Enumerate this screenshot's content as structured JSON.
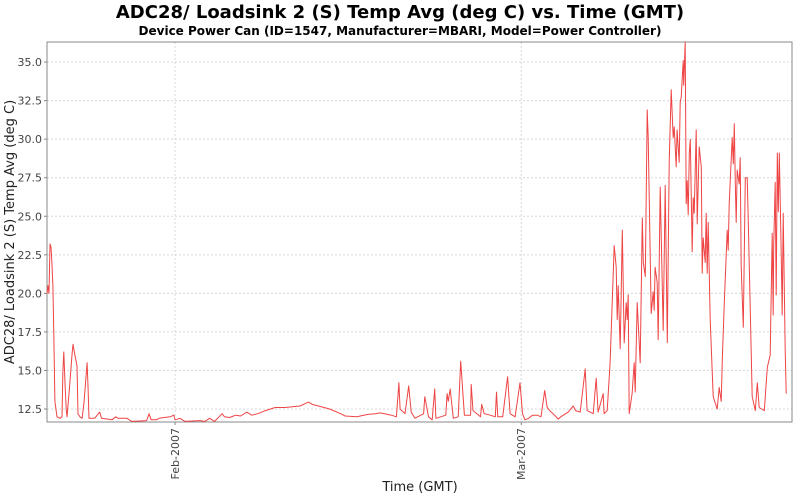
{
  "chart_data": {
    "type": "line",
    "title": "ADC28/ Loadsink 2 (S) Temp Avg (deg C) vs. Time (GMT)",
    "subtitle": "Device Power Can (ID=1547, Manufacturer=MBARI, Model=Power Controller)",
    "xlabel": "Time (GMT)",
    "ylabel": "ADC28/ Loadsink 2 (S) Temp Avg (deg C)",
    "x_units": "day of year 2007 (Jan 1 = 0)",
    "xlim": [
      20.64,
      80.9
    ],
    "ylim": [
      11.66,
      36.3
    ],
    "grid": true,
    "y_ticks": [
      12.5,
      15.0,
      17.5,
      20.0,
      22.5,
      25.0,
      27.5,
      30.0,
      32.5,
      35.0
    ],
    "y_tick_labels": [
      "12.5",
      "15.0",
      "17.5",
      "20.0",
      "22.5",
      "25.0",
      "27.5",
      "30.0",
      "32.5",
      "35.0"
    ],
    "x_ticks": [
      31,
      59
    ],
    "x_tick_labels": [
      "Feb-2007",
      "Mar-2007"
    ],
    "line_color": "#ee4444",
    "series": [
      {
        "name": "ADC28/ Loadsink 2 (S) Temp Avg",
        "points": [
          [
            20.64,
            20.0
          ],
          [
            20.72,
            20.5
          ],
          [
            20.8,
            20.0
          ],
          [
            20.88,
            23.2
          ],
          [
            20.96,
            23.0
          ],
          [
            21.04,
            22.0
          ],
          [
            21.12,
            20.5
          ],
          [
            21.2,
            17.0
          ],
          [
            21.28,
            13.0
          ],
          [
            21.45,
            12.0
          ],
          [
            21.69,
            11.9
          ],
          [
            21.85,
            12.0
          ],
          [
            21.93,
            15.0
          ],
          [
            22.0,
            16.2
          ],
          [
            22.1,
            14.0
          ],
          [
            22.2,
            12.4
          ],
          [
            22.26,
            12.0
          ],
          [
            22.42,
            13.5
          ],
          [
            22.66,
            16.0
          ],
          [
            22.74,
            16.7
          ],
          [
            22.9,
            16.0
          ],
          [
            23.07,
            15.3
          ],
          [
            23.15,
            12.2
          ],
          [
            23.3,
            12.0
          ],
          [
            23.48,
            11.9
          ],
          [
            23.64,
            13.0
          ],
          [
            23.88,
            15.5
          ],
          [
            23.96,
            14.0
          ],
          [
            24.04,
            11.9
          ],
          [
            24.5,
            11.9
          ],
          [
            24.9,
            12.3
          ],
          [
            25.06,
            11.9
          ],
          [
            25.9,
            11.8
          ],
          [
            26.2,
            12.0
          ],
          [
            26.4,
            11.9
          ],
          [
            27.1,
            11.9
          ],
          [
            27.3,
            11.8
          ],
          [
            27.5,
            11.7
          ],
          [
            28.7,
            11.75
          ],
          [
            28.9,
            12.2
          ],
          [
            29.06,
            11.8
          ],
          [
            29.5,
            11.8
          ],
          [
            29.7,
            11.9
          ],
          [
            30.6,
            12.0
          ],
          [
            30.9,
            12.1
          ],
          [
            31.0,
            11.8
          ],
          [
            31.4,
            11.9
          ],
          [
            31.8,
            11.7
          ],
          [
            33.0,
            11.75
          ],
          [
            33.4,
            11.7
          ],
          [
            33.8,
            11.9
          ],
          [
            34.2,
            11.7
          ],
          [
            34.8,
            12.2
          ],
          [
            35.0,
            12.0
          ],
          [
            35.4,
            11.95
          ],
          [
            35.9,
            12.1
          ],
          [
            36.3,
            12.05
          ],
          [
            36.8,
            12.3
          ],
          [
            37.2,
            12.1
          ],
          [
            37.7,
            12.2
          ],
          [
            38.3,
            12.4
          ],
          [
            39.1,
            12.6
          ],
          [
            39.9,
            12.6
          ],
          [
            41.1,
            12.7
          ],
          [
            41.8,
            12.95
          ],
          [
            42.1,
            12.8
          ],
          [
            42.6,
            12.7
          ],
          [
            43.5,
            12.5
          ],
          [
            44.4,
            12.2
          ],
          [
            44.75,
            12.05
          ],
          [
            45.7,
            12.0
          ],
          [
            46.6,
            12.15
          ],
          [
            47.2,
            12.2
          ],
          [
            47.6,
            12.25
          ],
          [
            48.5,
            12.1
          ],
          [
            48.9,
            12.0
          ],
          [
            49.1,
            14.2
          ],
          [
            49.2,
            12.5
          ],
          [
            49.6,
            12.2
          ],
          [
            49.9,
            14.0
          ],
          [
            50.1,
            12.3
          ],
          [
            50.4,
            11.9
          ],
          [
            51.1,
            12.2
          ],
          [
            51.2,
            13.3
          ],
          [
            51.5,
            12.0
          ],
          [
            51.8,
            11.8
          ],
          [
            52.0,
            13.8
          ],
          [
            52.1,
            11.9
          ],
          [
            52.9,
            12.1
          ],
          [
            53.0,
            13.5
          ],
          [
            53.1,
            13.0
          ],
          [
            53.25,
            13.8
          ],
          [
            53.5,
            11.9
          ],
          [
            53.9,
            12.0
          ],
          [
            54.1,
            15.6
          ],
          [
            54.4,
            12.1
          ],
          [
            54.9,
            12.1
          ],
          [
            54.95,
            14.1
          ],
          [
            55.1,
            12.4
          ],
          [
            55.7,
            12.0
          ],
          [
            55.8,
            12.8
          ],
          [
            56.0,
            12.2
          ],
          [
            56.5,
            12.1
          ],
          [
            56.9,
            12.0
          ],
          [
            57.0,
            13.6
          ],
          [
            57.1,
            12.0
          ],
          [
            57.5,
            12.0
          ],
          [
            57.9,
            14.6
          ],
          [
            58.1,
            12.2
          ],
          [
            58.5,
            12.0
          ],
          [
            58.9,
            14.2
          ],
          [
            59.1,
            12.2
          ],
          [
            59.3,
            11.8
          ],
          [
            59.6,
            11.9
          ],
          [
            59.9,
            12.1
          ],
          [
            60.3,
            12.1
          ],
          [
            60.6,
            12.0
          ],
          [
            60.9,
            13.7
          ],
          [
            61.1,
            12.6
          ],
          [
            61.3,
            12.4
          ],
          [
            61.7,
            12.1
          ],
          [
            62.0,
            11.85
          ],
          [
            62.2,
            12.0
          ],
          [
            62.8,
            12.3
          ],
          [
            63.2,
            12.7
          ],
          [
            63.4,
            12.4
          ],
          [
            63.77,
            12.3
          ],
          [
            64.17,
            15.1
          ],
          [
            64.33,
            12.4
          ],
          [
            64.82,
            12.2
          ],
          [
            65.06,
            14.5
          ],
          [
            65.22,
            12.3
          ],
          [
            65.63,
            13.5
          ],
          [
            65.7,
            12.2
          ],
          [
            65.95,
            12.4
          ],
          [
            66.19,
            15.5
          ],
          [
            66.52,
            23.1
          ],
          [
            66.68,
            21.7
          ],
          [
            66.76,
            18.3
          ],
          [
            66.84,
            20.5
          ],
          [
            67.0,
            16.4
          ],
          [
            67.17,
            24.1
          ],
          [
            67.33,
            16.8
          ],
          [
            67.49,
            19.4
          ],
          [
            67.57,
            18.3
          ],
          [
            67.65,
            19.9
          ],
          [
            67.73,
            12.2
          ],
          [
            67.97,
            13.5
          ],
          [
            68.14,
            15.5
          ],
          [
            68.22,
            13.6
          ],
          [
            68.38,
            19.4
          ],
          [
            68.62,
            15.5
          ],
          [
            68.79,
            24.9
          ],
          [
            68.87,
            22.0
          ],
          [
            69.03,
            21.1
          ],
          [
            69.19,
            31.9
          ],
          [
            69.27,
            30.1
          ],
          [
            69.51,
            18.7
          ],
          [
            69.67,
            20.1
          ],
          [
            69.75,
            18.9
          ],
          [
            69.83,
            21.7
          ],
          [
            70.0,
            20.7
          ],
          [
            70.08,
            17.0
          ],
          [
            70.24,
            26.9
          ],
          [
            70.48,
            17.6
          ],
          [
            70.64,
            27.0
          ],
          [
            70.81,
            16.8
          ],
          [
            70.97,
            28.5
          ],
          [
            71.13,
            33.2
          ],
          [
            71.29,
            30.1
          ],
          [
            71.37,
            30.8
          ],
          [
            71.53,
            28.2
          ],
          [
            71.61,
            30.6
          ],
          [
            71.78,
            28.5
          ],
          [
            71.86,
            32.4
          ],
          [
            71.94,
            32.7
          ],
          [
            72.1,
            35.1
          ],
          [
            72.14,
            33.5
          ],
          [
            72.26,
            36.3
          ],
          [
            72.34,
            25.8
          ],
          [
            72.42,
            27.3
          ],
          [
            72.5,
            25.1
          ],
          [
            72.59,
            29.1
          ],
          [
            72.67,
            30.0
          ],
          [
            72.83,
            22.7
          ],
          [
            72.91,
            26.2
          ],
          [
            72.99,
            25.2
          ],
          [
            73.15,
            30.6
          ],
          [
            73.23,
            24.5
          ],
          [
            73.39,
            29.5
          ],
          [
            73.56,
            28.2
          ],
          [
            73.64,
            21.3
          ],
          [
            73.72,
            23.6
          ],
          [
            73.88,
            22.0
          ],
          [
            73.96,
            25.2
          ],
          [
            74.04,
            21.3
          ],
          [
            74.12,
            24.6
          ],
          [
            74.28,
            18.3
          ],
          [
            74.53,
            13.3
          ],
          [
            74.85,
            12.5
          ],
          [
            75.01,
            13.9
          ],
          [
            75.17,
            13.0
          ],
          [
            75.26,
            15.7
          ],
          [
            75.42,
            19.4
          ],
          [
            75.66,
            24.1
          ],
          [
            75.74,
            22.8
          ],
          [
            75.82,
            25.8
          ],
          [
            76.06,
            30.1
          ],
          [
            76.15,
            28.4
          ],
          [
            76.23,
            31.0
          ],
          [
            76.31,
            27.1
          ],
          [
            76.39,
            24.6
          ],
          [
            76.47,
            28.0
          ],
          [
            76.63,
            27.1
          ],
          [
            76.71,
            28.8
          ],
          [
            76.79,
            21.7
          ],
          [
            76.96,
            17.8
          ],
          [
            77.12,
            27.5
          ],
          [
            77.28,
            27.5
          ],
          [
            77.36,
            24.9
          ],
          [
            77.68,
            13.3
          ],
          [
            77.93,
            12.4
          ],
          [
            78.09,
            14.2
          ],
          [
            78.25,
            12.6
          ],
          [
            78.66,
            12.4
          ],
          [
            78.9,
            15.2
          ],
          [
            79.14,
            16.0
          ],
          [
            79.3,
            23.9
          ],
          [
            79.38,
            18.6
          ],
          [
            79.42,
            23.1
          ],
          [
            79.54,
            27.2
          ],
          [
            79.62,
            19.9
          ],
          [
            79.71,
            29.1
          ],
          [
            79.79,
            25.3
          ],
          [
            79.87,
            29.1
          ],
          [
            80.03,
            22.6
          ],
          [
            80.11,
            18.6
          ],
          [
            80.19,
            25.2
          ],
          [
            80.35,
            16.3
          ],
          [
            80.43,
            13.5
          ]
        ]
      }
    ]
  }
}
